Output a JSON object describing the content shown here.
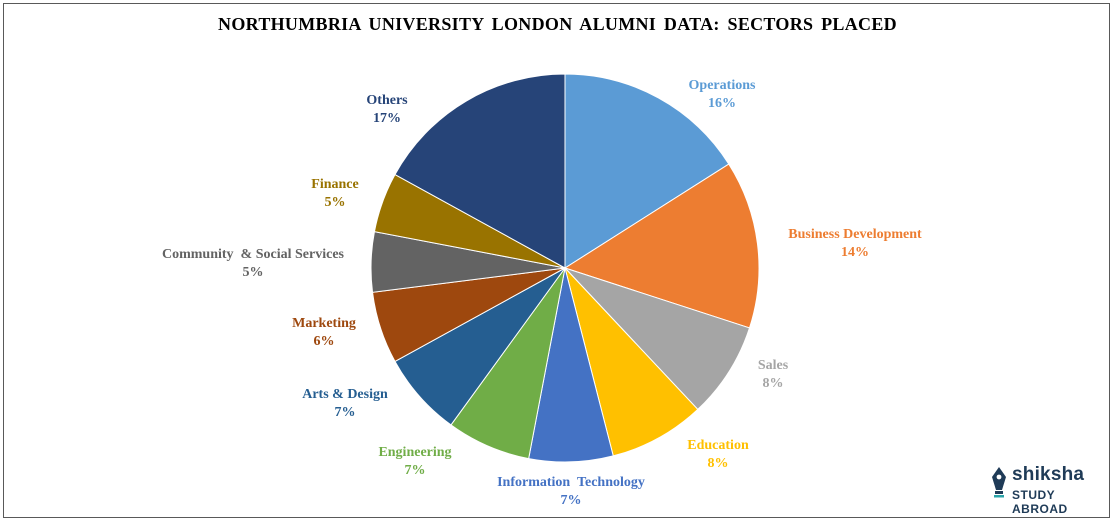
{
  "chart_data": {
    "type": "pie",
    "title": "NORTHUMBRIA  UNIVERSITY  LONDON  ALUMNI  DATA:  SECTORS  PLACED",
    "slices": [
      {
        "label": "Operations",
        "value": 16,
        "display": "16%",
        "color": "#5b9bd5"
      },
      {
        "label": "Business Development",
        "value": 14,
        "display": "14%",
        "color": "#ed7d31"
      },
      {
        "label": "Sales",
        "value": 8,
        "display": "8%",
        "color": "#a5a5a5"
      },
      {
        "label": "Education",
        "value": 8,
        "display": "8%",
        "color": "#ffc000"
      },
      {
        "label": "Information  Technology",
        "value": 7,
        "display": "7%",
        "color": "#4472c4"
      },
      {
        "label": "Engineering",
        "value": 7,
        "display": "7%",
        "color": "#70ad47"
      },
      {
        "label": "Arts & Design",
        "value": 7,
        "display": "7%",
        "color": "#255e91"
      },
      {
        "label": "Marketing",
        "value": 6,
        "display": "6%",
        "color": "#9e480e"
      },
      {
        "label": "Community  & Social Services",
        "value": 5,
        "display": "5%",
        "color": "#636363"
      },
      {
        "label": "Finance",
        "value": 5,
        "display": "5%",
        "color": "#997300"
      },
      {
        "label": "Others",
        "value": 17,
        "display": "17%",
        "color": "#264478"
      }
    ],
    "legend": "none",
    "data_labels": "outside"
  },
  "branding": {
    "logo_name": "shiksha",
    "logo_tagline": "STUDY ABROAD",
    "logo_icon": "pen-nib-icon",
    "logo_color": "#1f3b57"
  }
}
